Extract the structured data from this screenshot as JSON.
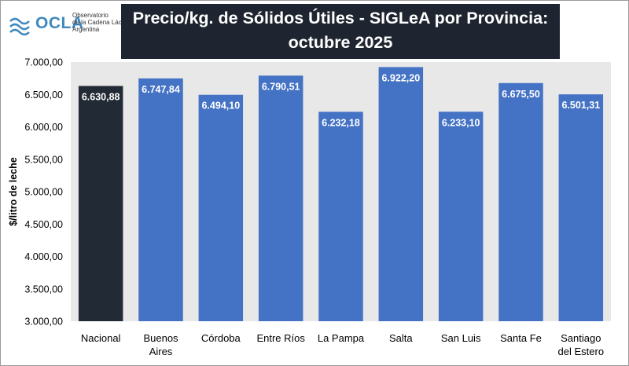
{
  "logo": {
    "name": "OCLA",
    "line1": "Observatorio",
    "line2": "de la Cadena Láctea",
    "line3": "Argentina",
    "color": "#3f89bf"
  },
  "chart_data": {
    "type": "bar",
    "title": "Precio/kg. de Sólidos Útiles - SIGLeA por Provincia: octubre 2025",
    "title_lines": [
      "Precio/kg. de Sólidos Útiles - SIGLeA por Provincia:",
      "octubre 2025"
    ],
    "ylabel": "$/litro de leche",
    "xlabel": "",
    "ylim": [
      3000,
      7000
    ],
    "yticks": [
      3000,
      3500,
      4000,
      4500,
      5000,
      5500,
      6000,
      6500,
      7000
    ],
    "ytick_labels": [
      "3.000,00",
      "3.500,00",
      "4.000,00",
      "4.500,00",
      "5.000,00",
      "5.500,00",
      "6.000,00",
      "6.500,00",
      "7.000,00"
    ],
    "categories": [
      [
        "Nacional"
      ],
      [
        "Buenos",
        "Aires"
      ],
      [
        "Córdoba"
      ],
      [
        "Entre Ríos"
      ],
      [
        "La Pampa"
      ],
      [
        "Salta"
      ],
      [
        "San Luis"
      ],
      [
        "Santa Fe"
      ],
      [
        "Santiago",
        "del Estero"
      ]
    ],
    "values": [
      6630.88,
      6747.84,
      6494.1,
      6790.51,
      6232.18,
      6922.2,
      6233.1,
      6675.5,
      6501.31
    ],
    "value_labels": [
      "6.630,88",
      "6.747,84",
      "6.494,10",
      "6.790,51",
      "6.232,18",
      "6.922,20",
      "6.233,10",
      "6.675,50",
      "6.501,31"
    ],
    "colors": [
      "#222a35",
      "#4472c4",
      "#4472c4",
      "#4472c4",
      "#4472c4",
      "#4472c4",
      "#4472c4",
      "#4472c4",
      "#4472c4"
    ],
    "grid": false,
    "legend": "none",
    "background": "#e8e8e8"
  }
}
